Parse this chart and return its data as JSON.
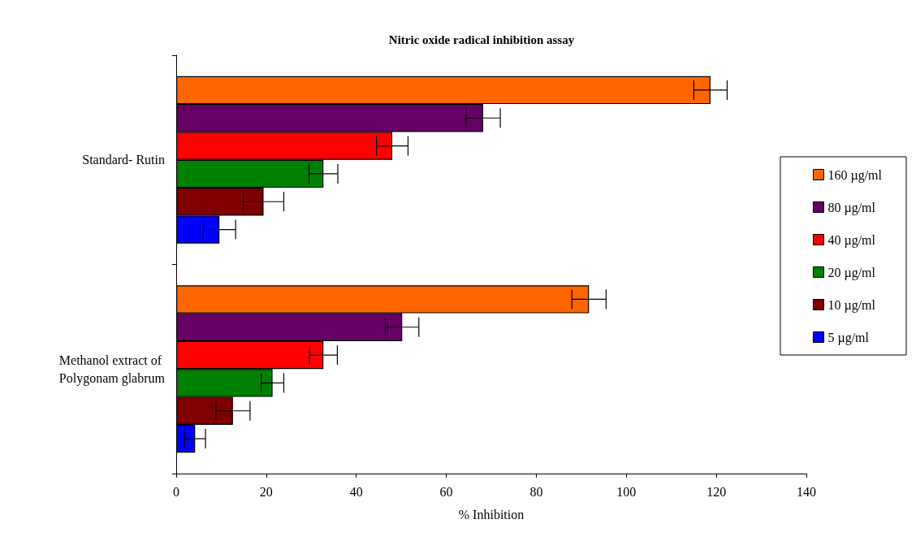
{
  "chart_data": {
    "type": "bar",
    "orientation": "horizontal",
    "title": "Nitric oxide radical inhibition assay",
    "xlabel": "% Inhibition",
    "categories": [
      "Standard- Rutin",
      "Methanol extract of Polygonam glabrum"
    ],
    "series": [
      {
        "name": "160 µg/ml",
        "color": "#ff6600",
        "values": [
          118.7,
          91.7
        ],
        "errors": [
          3.7,
          3.8
        ]
      },
      {
        "name": "80 µg/ml",
        "color": "#660066",
        "values": [
          68.2,
          50.2
        ],
        "errors": [
          3.8,
          3.7
        ]
      },
      {
        "name": "40 µg/ml",
        "color": "#ff0000",
        "values": [
          48,
          32.7
        ],
        "errors": [
          3.5,
          3.1
        ]
      },
      {
        "name": "20 µg/ml",
        "color": "#008000",
        "values": [
          32.7,
          21.4
        ],
        "errors": [
          3.2,
          2.5
        ]
      },
      {
        "name": "10 µg/ml",
        "color": "#800000",
        "values": [
          19.4,
          12.6
        ],
        "errors": [
          4.5,
          3.8
        ]
      },
      {
        "name": "5 µg/ml",
        "color": "#0000ff",
        "values": [
          9.6,
          4.2
        ],
        "errors": [
          3.6,
          2.3
        ]
      }
    ],
    "xlim": [
      0,
      140
    ],
    "xticks": [
      0,
      20,
      40,
      60,
      80,
      100,
      120,
      140
    ],
    "grid": false,
    "legend": "right"
  }
}
